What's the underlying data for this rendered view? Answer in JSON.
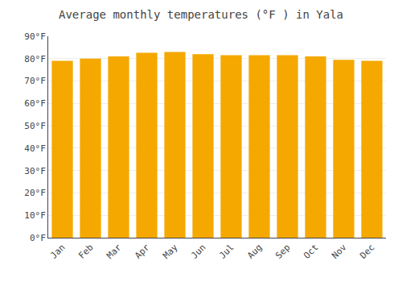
{
  "chart_data": {
    "type": "bar",
    "title": "Average monthly temperatures (°F ) in Yala",
    "categories": [
      "Jan",
      "Feb",
      "Mar",
      "Apr",
      "May",
      "Jun",
      "Jul",
      "Aug",
      "Sep",
      "Oct",
      "Nov",
      "Dec"
    ],
    "values": [
      79.0,
      80.0,
      81.0,
      82.6,
      83.0,
      82.0,
      81.5,
      81.5,
      81.5,
      81.0,
      79.5,
      79.0
    ],
    "color": "#F5A800",
    "ylim": [
      0,
      90
    ],
    "yticks": [
      {
        "value": 0,
        "label": "0°F"
      },
      {
        "value": 10,
        "label": "10°F"
      },
      {
        "value": 20,
        "label": "20°F"
      },
      {
        "value": 30,
        "label": "30°F"
      },
      {
        "value": 40,
        "label": "40°F"
      },
      {
        "value": 50,
        "label": "50°F"
      },
      {
        "value": 60,
        "label": "60°F"
      },
      {
        "value": 70,
        "label": "70°F"
      },
      {
        "value": 80,
        "label": "80°F"
      },
      {
        "value": 90,
        "label": "90°F"
      }
    ],
    "grid": true
  }
}
